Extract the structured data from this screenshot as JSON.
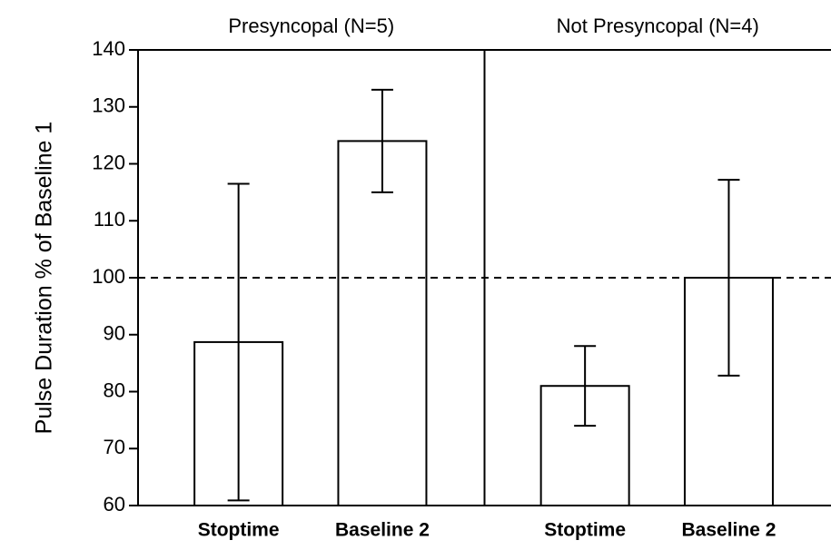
{
  "chart_data": {
    "type": "bar",
    "ylabel": "Pulse Duration % of Baseline 1",
    "ylim": [
      60,
      140
    ],
    "yticks": [
      60,
      70,
      80,
      90,
      100,
      110,
      120,
      130,
      140
    ],
    "reference_line": 100,
    "color": "#ffffff",
    "panels": [
      {
        "title": "Presyncopal (N=5)",
        "categories": [
          "Stoptime",
          "Baseline 2"
        ],
        "values": [
          88.7,
          124
        ],
        "errors": [
          27.8,
          9
        ]
      },
      {
        "title": "Not Presyncopal (N=4)",
        "categories": [
          "Stoptime",
          "Baseline 2"
        ],
        "values": [
          81,
          100
        ],
        "errors": [
          7,
          17.2
        ]
      }
    ]
  }
}
